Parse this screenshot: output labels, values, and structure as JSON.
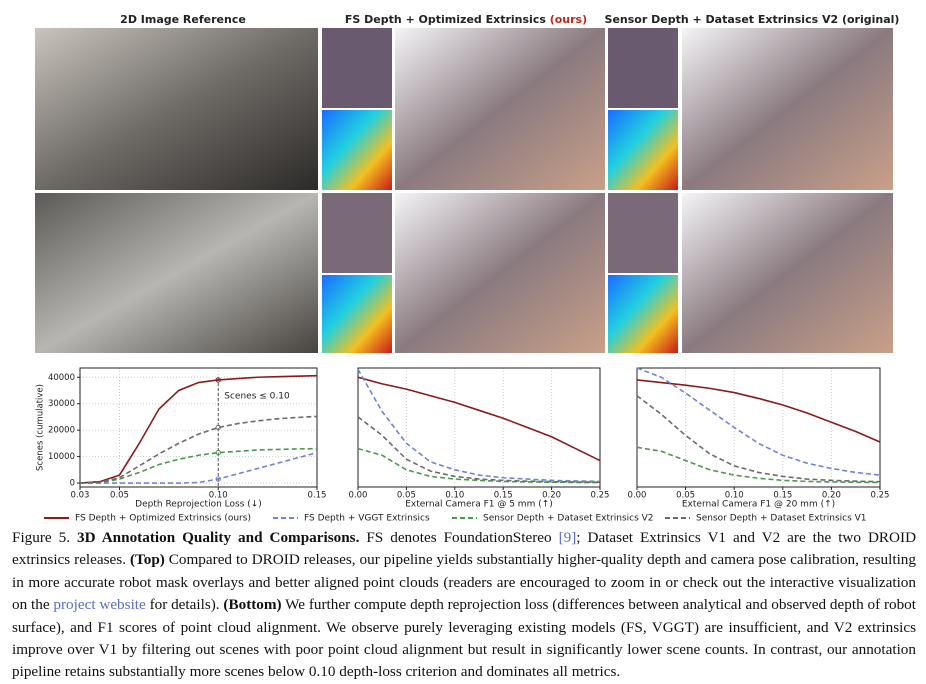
{
  "figure": {
    "headers": [
      "2D Image Reference",
      "FS Depth + Optimized Extrinsics ",
      "(ours)",
      "Sensor Depth + Dataset Extrinsics V2 (original)"
    ]
  },
  "chart_data": [
    {
      "type": "line",
      "xlabel": "Depth Reprojection Loss (↓)",
      "ylabel": "Scenes (cumulative)",
      "annotation": "Scenes ≤ 0.10",
      "annotation_x": 0.1,
      "x": [
        0.03,
        0.04,
        0.05,
        0.06,
        0.07,
        0.08,
        0.09,
        0.1,
        0.11,
        0.12,
        0.13,
        0.14,
        0.15
      ],
      "xlim": [
        0.03,
        0.15
      ],
      "xticks": [
        0.03,
        0.05,
        {
          "value": 0.1,
          "label": "0.10"
        },
        0.15
      ],
      "ylim": [
        -1500,
        43500
      ],
      "yticks": [
        0,
        10000,
        20000,
        30000,
        40000
      ],
      "grid": true,
      "series": [
        {
          "name": "FS Depth + Optimized Extrinsics (ours)",
          "color": "#8b1a1a",
          "dash": "solid",
          "values": [
            0,
            500,
            3000,
            15000,
            28000,
            35000,
            38000,
            39000,
            39500,
            40000,
            40200,
            40400,
            40600
          ]
        },
        {
          "name": "FS Depth + VGGT Extrinsics",
          "color": "#6f84d6",
          "dash": "dashed",
          "values": [
            0,
            0,
            0,
            0,
            0,
            0,
            200,
            1500,
            3500,
            5500,
            7500,
            9500,
            11500
          ]
        },
        {
          "name": "Sensor Depth + Dataset Extrinsics V2",
          "color": "#4a9a4a",
          "dash": "dashed",
          "values": [
            0,
            200,
            1500,
            4000,
            7000,
            9000,
            10500,
            11500,
            12000,
            12500,
            12700,
            12900,
            13000
          ]
        },
        {
          "name": "Sensor Depth + Dataset Extrinsics V1",
          "color": "#6b6b6b",
          "dash": "dashed",
          "values": [
            0,
            300,
            2000,
            6500,
            11000,
            15000,
            18500,
            21000,
            22500,
            23500,
            24300,
            24800,
            25200
          ]
        }
      ]
    },
    {
      "type": "line",
      "xlabel": "External Camera F1 @ 5 mm (↑)",
      "x": [
        0,
        0.025,
        0.05,
        0.075,
        0.1,
        0.125,
        0.15,
        0.175,
        0.2,
        0.225,
        0.25
      ],
      "xlim": [
        0,
        0.25
      ],
      "xticks": [
        {
          "value": 0,
          "label": "0.00"
        },
        0.05,
        {
          "value": 0.1,
          "label": "0.10"
        },
        0.15,
        {
          "value": 0.2,
          "label": "0.20"
        },
        0.25
      ],
      "ylim": [
        -1500,
        43500
      ],
      "grid": true,
      "series": [
        {
          "color": "#8b1a1a",
          "dash": "solid",
          "values": [
            40000,
            37500,
            35500,
            33000,
            30500,
            27500,
            24500,
            21000,
            17500,
            13000,
            8500
          ]
        },
        {
          "color": "#6f84d6",
          "dash": "dashed",
          "values": [
            43000,
            27000,
            15000,
            8000,
            5000,
            3000,
            2000,
            1500,
            1000,
            800,
            600
          ]
        },
        {
          "color": "#4a9a4a",
          "dash": "dashed",
          "values": [
            13000,
            10500,
            5000,
            2500,
            1500,
            1000,
            600,
            400,
            300,
            200,
            150
          ]
        },
        {
          "color": "#6b6b6b",
          "dash": "dashed",
          "values": [
            25000,
            18000,
            9000,
            4500,
            2500,
            1500,
            1000,
            700,
            500,
            400,
            300
          ]
        }
      ]
    },
    {
      "type": "line",
      "xlabel": "External Camera F1 @ 20 mm (↑)",
      "x": [
        0,
        0.025,
        0.05,
        0.075,
        0.1,
        0.125,
        0.15,
        0.175,
        0.2,
        0.225,
        0.25
      ],
      "xlim": [
        0,
        0.25
      ],
      "xticks": [
        {
          "value": 0,
          "label": "0.00"
        },
        0.05,
        {
          "value": 0.1,
          "label": "0.10"
        },
        0.15,
        {
          "value": 0.2,
          "label": "0.20"
        },
        0.25
      ],
      "ylim": [
        -1500,
        43500
      ],
      "grid": true,
      "series": [
        {
          "color": "#8b1a1a",
          "dash": "solid",
          "values": [
            39000,
            38000,
            37000,
            35800,
            34200,
            32000,
            29500,
            26500,
            23000,
            19500,
            15500
          ]
        },
        {
          "color": "#6f84d6",
          "dash": "dashed",
          "values": [
            43500,
            40000,
            34000,
            27500,
            21000,
            15000,
            10500,
            7500,
            5500,
            4000,
            3000
          ]
        },
        {
          "color": "#4a9a4a",
          "dash": "dashed",
          "values": [
            13500,
            12000,
            8500,
            5000,
            3000,
            1800,
            1000,
            600,
            400,
            300,
            200
          ]
        },
        {
          "color": "#6b6b6b",
          "dash": "dashed",
          "values": [
            33000,
            26000,
            18000,
            11000,
            6500,
            4000,
            2500,
            1500,
            1000,
            700,
            500
          ]
        }
      ]
    }
  ],
  "caption": {
    "label": "Figure 5.",
    "title": "3D Annotation Quality and Comparisons.",
    "t1": "FS denotes FoundationStereo",
    "ref": "[9]",
    "t2": "; Dataset Extrinsics V1 and V2 are the two DROID extrinsics releases.",
    "top": "(Top)",
    "t3": "Compared to DROID releases, our pipeline yields substantially higher-quality depth and camera pose calibration, resulting in more accurate robot mask overlays and better aligned point clouds (readers are encouraged to zoom in or check out the interactive visualization on the",
    "link": "project website",
    "t4": "for details).",
    "bottom": "(Bottom)",
    "t5": "We further compute depth reprojection loss (differences between analytical and observed depth of robot surface), and F1 scores of point cloud alignment. We observe purely leveraging existing models (FS, VGGT) are insufficient, and V2 extrinsics improve over V1 by filtering out scenes with poor point cloud alignment but result in significantly lower scene counts. In contrast, our annotation pipeline retains substantially more scenes below 0.10 depth-loss criterion and dominates all metrics."
  }
}
